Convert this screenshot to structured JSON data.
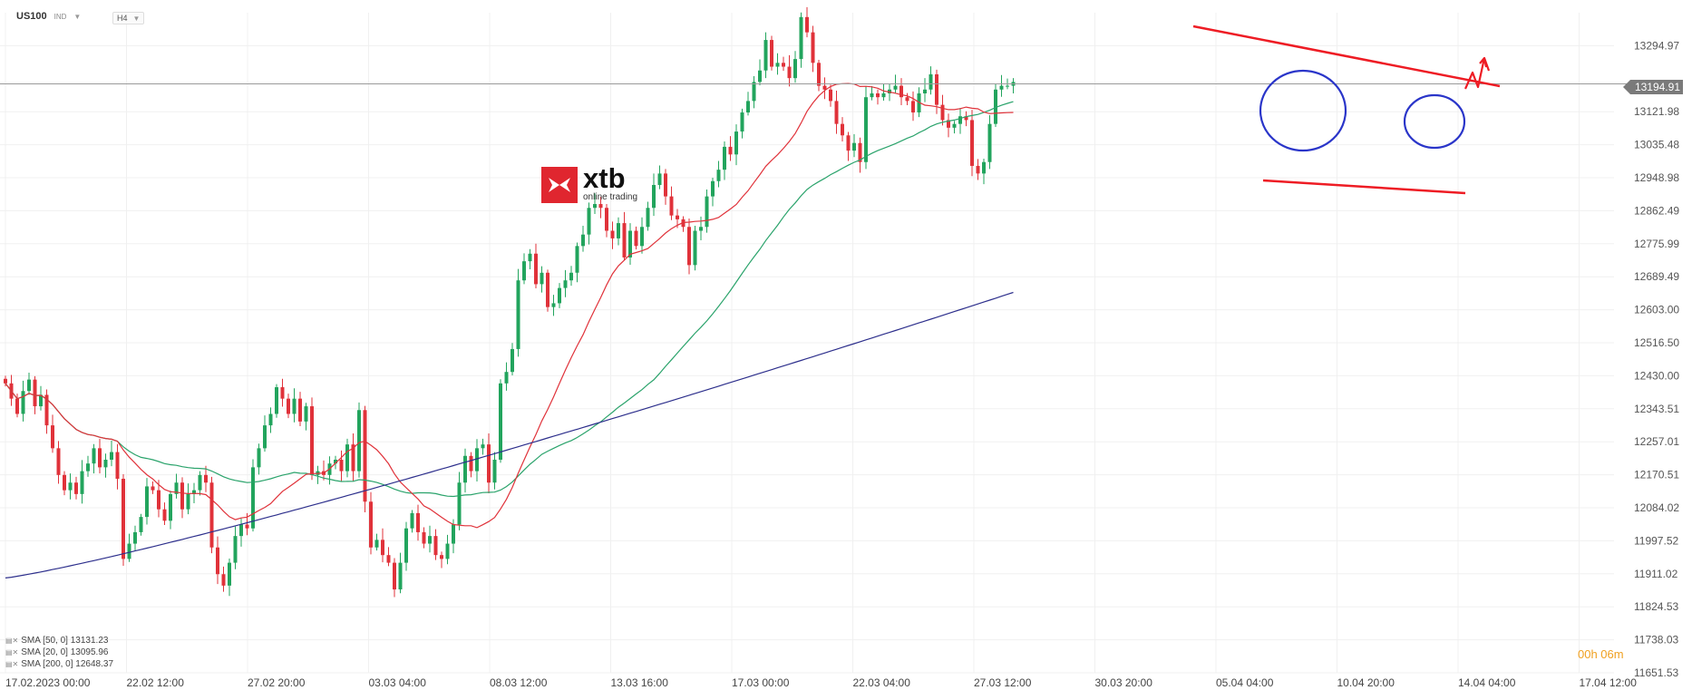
{
  "header": {
    "symbol": "US100",
    "subtype": "IND",
    "timeframe": "H4"
  },
  "logo": {
    "name": "xtb",
    "tagline": "online trading"
  },
  "price_label": "13194.91",
  "timer": "00h 06m",
  "legend": [
    {
      "label": "SMA [50, 0] 13131.23"
    },
    {
      "label": "SMA [20, 0] 13095.96"
    },
    {
      "label": "SMA [200, 0] 12648.37"
    }
  ],
  "colors": {
    "bull": "#22a45d",
    "bear": "#e0323a",
    "sma20": "#e0323a",
    "sma50": "#2aa36b",
    "sma200": "#2d2f8c",
    "trendline": "#ee1c24",
    "circle": "#2a35c9",
    "grid": "#f0f0f0",
    "current_line": "#9a9a9a"
  },
  "chart_data": {
    "type": "candlestick",
    "symbol": "US100",
    "timeframe": "H4",
    "x_ticks": [
      "17.02.2023   00:00",
      "22.02  12:00",
      "27.02  20:00",
      "03.03  04:00",
      "08.03  12:00",
      "13.03  16:00",
      "17.03  00:00",
      "22.03  04:00",
      "27.03  12:00",
      "30.03  20:00",
      "05.04  04:00",
      "10.04  20:00",
      "14.04  04:00",
      "17.04  12:00"
    ],
    "y_ticks": [
      13294.97,
      13121.98,
      13035.48,
      12948.98,
      12862.49,
      12775.99,
      12689.49,
      12603.0,
      12516.5,
      12430.0,
      12343.51,
      12257.01,
      12170.51,
      12084.02,
      11997.52,
      11911.02,
      11824.53,
      11738.03,
      11651.53
    ],
    "ylim": [
      11651.53,
      13381.47
    ],
    "current_price": 13194.91,
    "close": [
      12410,
      12370,
      12330,
      12390,
      12420,
      12350,
      12380,
      12300,
      12240,
      12170,
      12130,
      12150,
      12120,
      12180,
      12200,
      12240,
      12190,
      12210,
      12230,
      12160,
      11950,
      11990,
      12020,
      12060,
      12140,
      12130,
      12080,
      12050,
      12120,
      12150,
      12080,
      12120,
      12130,
      12170,
      12150,
      11980,
      11910,
      11880,
      11940,
      12010,
      12040,
      12030,
      12190,
      12240,
      12300,
      12330,
      12400,
      12370,
      12330,
      12370,
      12310,
      12350,
      12170,
      12180,
      12170,
      12200,
      12210,
      12180,
      12250,
      12180,
      12340,
      12100,
      11980,
      12000,
      11960,
      11940,
      11870,
      11940,
      12030,
      12070,
      12020,
      11990,
      12010,
      11960,
      11950,
      11990,
      12040,
      12150,
      12220,
      12180,
      12240,
      12250,
      12150,
      12210,
      12410,
      12440,
      12500,
      12680,
      12730,
      12750,
      12670,
      12700,
      12610,
      12620,
      12660,
      12680,
      12700,
      12770,
      12800,
      12870,
      12880,
      12870,
      12810,
      12790,
      12830,
      12740,
      12810,
      12770,
      12820,
      12870,
      12930,
      12960,
      12900,
      12850,
      12840,
      12820,
      12720,
      12810,
      12820,
      12900,
      12940,
      12970,
      13030,
      13010,
      13070,
      13120,
      13150,
      13200,
      13230,
      13310,
      13240,
      13250,
      13240,
      13210,
      13260,
      13370,
      13330,
      13250,
      13190,
      13180,
      13150,
      13090,
      13060,
      13020,
      13040,
      12990,
      13160,
      13170,
      13160,
      13170,
      13180,
      13190,
      13160,
      13150,
      13120,
      13170,
      13180,
      13220,
      13140,
      13100,
      13080,
      13090,
      13110,
      13100,
      12980,
      12960,
      12990,
      13090,
      13180,
      13190,
      13190,
      13200
    ]
  }
}
